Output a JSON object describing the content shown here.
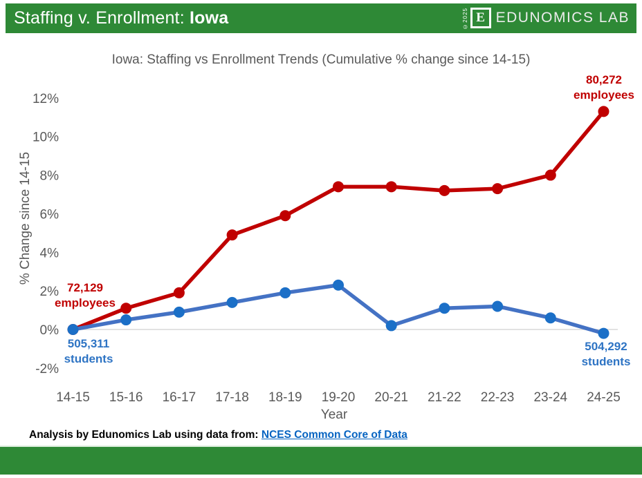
{
  "header": {
    "title_prefix": "Staffing v. Enrollment: ",
    "title_state": "Iowa",
    "logo": {
      "copyright": "©2025",
      "initial": "E",
      "wordmark": "EDUNOMICS LAB"
    }
  },
  "chart_data": {
    "type": "line",
    "title": "Iowa: Staffing vs Enrollment Trends (Cumulative % change since 14-15)",
    "xlabel": "Year",
    "ylabel": "% Change since 14-15",
    "categories": [
      "14-15",
      "15-16",
      "16-17",
      "17-18",
      "18-19",
      "19-20",
      "20-21",
      "21-22",
      "22-23",
      "23-24",
      "24-25"
    ],
    "y_ticks": [
      {
        "value": 12,
        "label": "12%"
      },
      {
        "value": 10,
        "label": "10%"
      },
      {
        "value": 8,
        "label": "8%"
      },
      {
        "value": 6,
        "label": "6%"
      },
      {
        "value": 4,
        "label": "4%"
      },
      {
        "value": 2,
        "label": "2%"
      },
      {
        "value": 0,
        "label": "0%"
      },
      {
        "value": -2,
        "label": "-2%"
      }
    ],
    "ylim": [
      -2.5,
      12.5
    ],
    "grid": "zero-line-only",
    "legend": "none",
    "series": [
      {
        "name": "employees",
        "line_color": "#C00000",
        "marker_color": "#C00000",
        "values": [
          0,
          1.1,
          1.9,
          4.9,
          5.9,
          7.4,
          7.4,
          7.2,
          7.3,
          8.0,
          11.3
        ]
      },
      {
        "name": "students",
        "line_color": "#4472C4",
        "marker_color": "#1B6FC7",
        "values": [
          0,
          0.5,
          0.9,
          1.4,
          1.9,
          2.3,
          0.2,
          1.1,
          1.2,
          0.6,
          -0.2
        ]
      }
    ],
    "annotations": [
      {
        "id": "employees-start",
        "lines": [
          "72,129",
          "employees"
        ],
        "color": "#C00000"
      },
      {
        "id": "students-start",
        "lines": [
          "505,311",
          "students"
        ],
        "color": "#2E74C4"
      },
      {
        "id": "employees-end",
        "lines": [
          "80,272",
          "employees"
        ],
        "color": "#C00000"
      },
      {
        "id": "students-end",
        "lines": [
          "504,292",
          "students"
        ],
        "color": "#2E74C4"
      }
    ]
  },
  "footer": {
    "prefix": "Analysis by Edunomics Lab using data from: ",
    "link_text": "NCES Common Core of Data"
  },
  "colors": {
    "brand_green": "#2E8936",
    "red_series": "#C00000",
    "blue_series": "#4472C4",
    "axis_text": "#595959",
    "link_blue": "#0563C1",
    "zero_gridline": "#D8D8D8"
  }
}
